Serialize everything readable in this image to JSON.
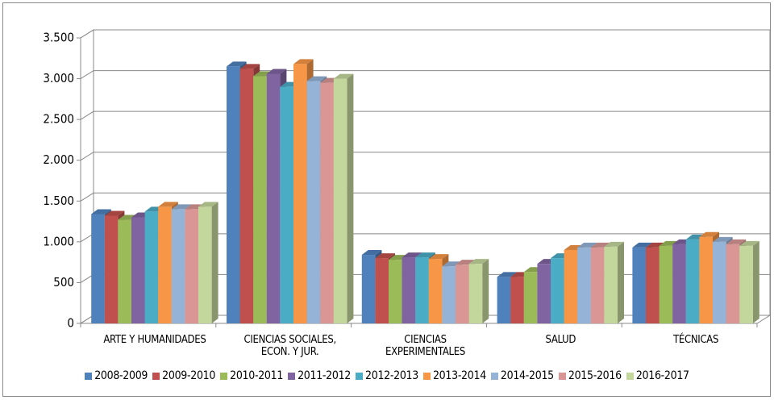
{
  "chart_data": {
    "type": "bar3d",
    "categories": [
      "ARTE Y HUMANIDADES",
      "CIENCIAS SOCIALES, ECON. Y JUR.",
      "CIENCIAS EXPERIMENTALES",
      "SALUD",
      "TÉCNICAS"
    ],
    "series": [
      {
        "name": "2008-2009",
        "color": "#4f81bd",
        "values": [
          1340,
          3150,
          840,
          570,
          930
        ]
      },
      {
        "name": "2009-2010",
        "color": "#c0504d",
        "values": [
          1320,
          3120,
          800,
          570,
          930
        ]
      },
      {
        "name": "2010-2011",
        "color": "#9bbb59",
        "values": [
          1270,
          3030,
          780,
          630,
          950
        ]
      },
      {
        "name": "2011-2012",
        "color": "#8064a2",
        "values": [
          1300,
          3060,
          810,
          730,
          970
        ]
      },
      {
        "name": "2012-2013",
        "color": "#4bacc6",
        "values": [
          1370,
          2900,
          810,
          800,
          1030
        ]
      },
      {
        "name": "2013-2014",
        "color": "#f79646",
        "values": [
          1430,
          3180,
          790,
          900,
          1060
        ]
      },
      {
        "name": "2014-2015",
        "color": "#95b3d7",
        "values": [
          1400,
          2970,
          700,
          930,
          1000
        ]
      },
      {
        "name": "2015-2016",
        "color": "#d99694",
        "values": [
          1400,
          2950,
          720,
          930,
          970
        ]
      },
      {
        "name": "2016-2017",
        "color": "#c3d69b",
        "values": [
          1430,
          3000,
          730,
          940,
          950
        ]
      }
    ],
    "ylim": [
      0,
      3500
    ],
    "yticks": [
      0,
      500,
      {
        "value": 1000,
        "label": "1.000"
      },
      {
        "value": 1500,
        "label": "1.500"
      },
      {
        "value": 2000,
        "label": "2.000"
      },
      {
        "value": 2500,
        "label": "2.500"
      },
      {
        "value": 3000,
        "label": "3.000"
      },
      {
        "value": 3500,
        "label": "3.500"
      }
    ],
    "grid": true,
    "legend": "bottom"
  }
}
